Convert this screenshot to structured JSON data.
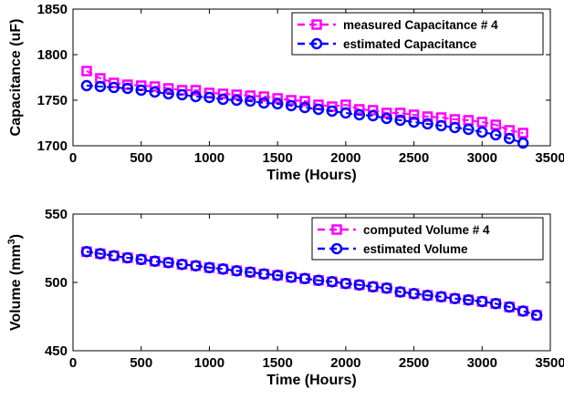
{
  "chart_data": [
    {
      "type": "line",
      "xlabel": "Time (Hours)",
      "ylabel": "Capacitance (uF)",
      "xlim": [
        0,
        3500
      ],
      "ylim": [
        1700,
        1850
      ],
      "xticks": [
        "0",
        "500",
        "1000",
        "1500",
        "2000",
        "2500",
        "3000",
        "3500"
      ],
      "yticks": [
        "1700",
        "1750",
        "1800",
        "1850"
      ],
      "legend_position": "top-right",
      "x": [
        100,
        200,
        300,
        400,
        500,
        600,
        700,
        800,
        900,
        1000,
        1100,
        1200,
        1300,
        1400,
        1500,
        1600,
        1700,
        1800,
        1900,
        2000,
        2100,
        2200,
        2300,
        2400,
        2500,
        2600,
        2700,
        2800,
        2900,
        3000,
        3100,
        3200,
        3300
      ],
      "series": [
        {
          "name": "measured Capacitance # 4",
          "color": "#ff00ff",
          "marker": "square",
          "values": [
            1782,
            1774,
            1769,
            1767,
            1766,
            1765,
            1763,
            1761,
            1761,
            1758,
            1757,
            1756,
            1755,
            1754,
            1752,
            1750,
            1749,
            1745,
            1743,
            1745,
            1740,
            1739,
            1736,
            1736,
            1734,
            1732,
            1731,
            1729,
            1728,
            1726,
            1723,
            1717,
            1714
          ]
        },
        {
          "name": "estimated Capacitance",
          "color": "#0000ff",
          "marker": "circle",
          "values": [
            1766,
            1765,
            1764,
            1763,
            1761,
            1759,
            1757,
            1756,
            1754,
            1753,
            1751,
            1750,
            1749,
            1747,
            1746,
            1744,
            1742,
            1740,
            1738,
            1736,
            1734,
            1733,
            1730,
            1728,
            1726,
            1724,
            1722,
            1720,
            1718,
            1715,
            1712,
            1708,
            1703
          ]
        }
      ]
    },
    {
      "type": "line",
      "xlabel": "Time (Hours)",
      "ylabel": "Volume (mm",
      "ylabel_sup": "3",
      "ylabel_end": ")",
      "xlim": [
        0,
        3500
      ],
      "ylim": [
        450,
        550
      ],
      "xticks": [
        "0",
        "500",
        "1000",
        "1500",
        "2000",
        "2500",
        "3000",
        "3500"
      ],
      "yticks": [
        "450",
        "500",
        "550"
      ],
      "legend_position": "top-right",
      "x": [
        100,
        200,
        300,
        400,
        500,
        600,
        700,
        800,
        900,
        1000,
        1100,
        1200,
        1300,
        1400,
        1500,
        1600,
        1700,
        1800,
        1900,
        2000,
        2100,
        2200,
        2300,
        2400,
        2500,
        2600,
        2700,
        2800,
        2900,
        3000,
        3100,
        3200,
        3300,
        3400
      ],
      "series": [
        {
          "name": "computed Volume # 4",
          "color": "#ff00ff",
          "marker": "square",
          "values": [
            522.5,
            521,
            519.5,
            518,
            516.8,
            515.5,
            514.5,
            513.2,
            512.2,
            510.8,
            509.8,
            508.5,
            507.5,
            506.2,
            505.2,
            503.8,
            502.8,
            501.5,
            500.5,
            499.2,
            498.2,
            496.8,
            495.8,
            493,
            491.8,
            490.5,
            489.5,
            488.2,
            487.2,
            486,
            484.5,
            482,
            479,
            476
          ]
        },
        {
          "name": "estimated Volume",
          "color": "#0000ff",
          "marker": "circle",
          "values": [
            522.5,
            521,
            519.5,
            518,
            516.8,
            515.5,
            514.5,
            513.2,
            512.2,
            510.8,
            509.8,
            508.5,
            507.5,
            506.2,
            505.2,
            503.8,
            502.8,
            501.5,
            500.5,
            499.2,
            498.2,
            496.8,
            495.8,
            493,
            491.8,
            490.5,
            489.5,
            488.2,
            487.2,
            486,
            484.5,
            482,
            479,
            476
          ]
        }
      ]
    }
  ]
}
